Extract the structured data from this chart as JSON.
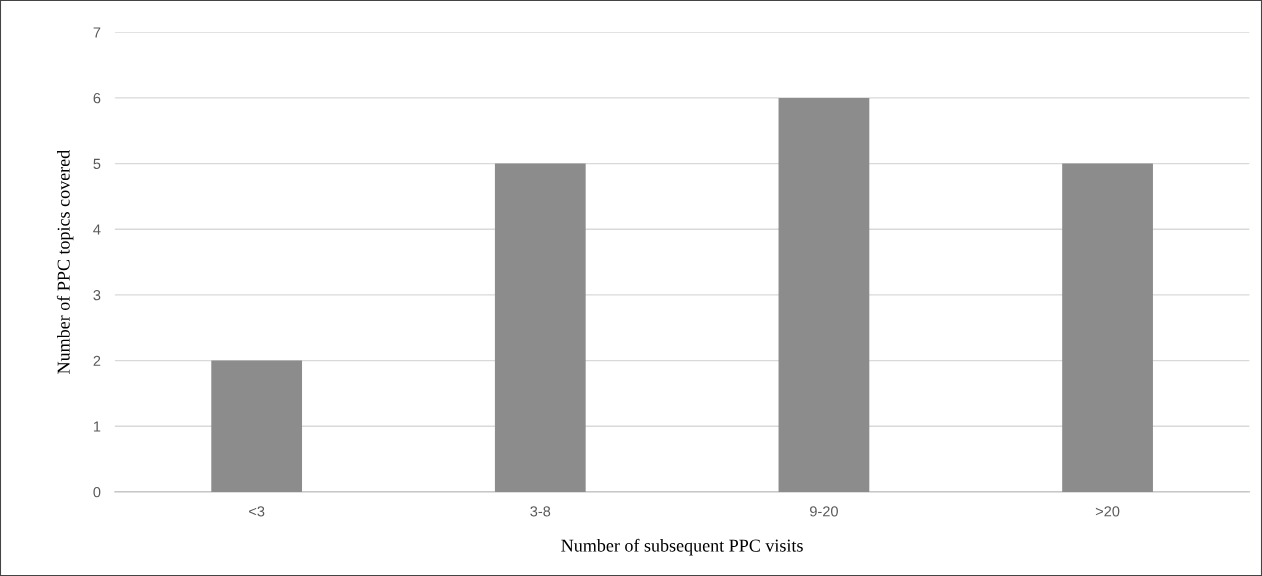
{
  "chart_data": {
    "type": "bar",
    "xlabel": "Number of subsequent PPC visits",
    "ylabel": "Number of PPC topics covered",
    "categories": [
      "<3",
      "3-8",
      "9-20",
      ">20"
    ],
    "values": [
      2,
      5,
      6,
      5
    ],
    "color": "#8c8c8c",
    "ylim": [
      0,
      7
    ],
    "yticks": [
      0,
      1,
      2,
      3,
      4,
      5,
      6,
      7
    ],
    "grid": "y",
    "legend": false
  }
}
